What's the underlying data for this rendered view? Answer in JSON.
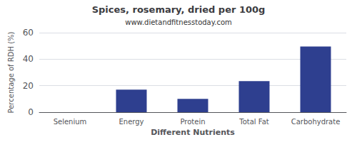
{
  "chart_data": {
    "type": "bar",
    "title": "Spices, rosemary, dried per 100g",
    "subtitle": "www.dietandfitnesstoday.com",
    "xlabel": "Different Nutrients",
    "ylabel": "Percentage of RDH (%)",
    "categories": [
      "Selenium",
      "Energy",
      "Protein",
      "Total Fat",
      "Carbohydrate"
    ],
    "values": [
      0,
      17,
      10,
      23.5,
      49.5
    ],
    "color": "#2e3f8f",
    "ylim": [
      0,
      60
    ],
    "yticks": [
      0,
      20,
      40,
      60
    ],
    "grid": true
  }
}
